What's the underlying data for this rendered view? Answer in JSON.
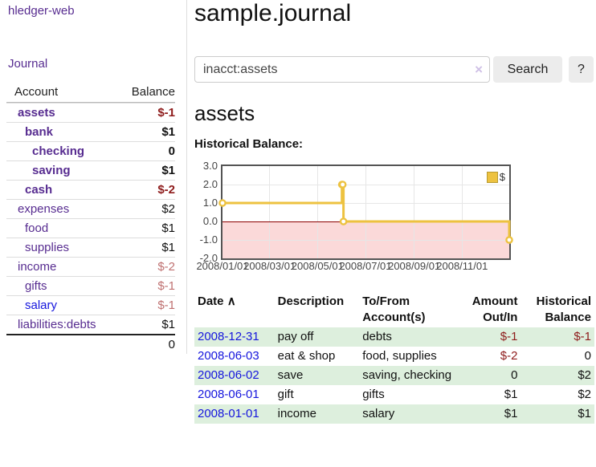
{
  "app": {
    "brand": "hledger-web"
  },
  "nav": {
    "journal": "Journal"
  },
  "sidebar": {
    "account_header": "Account",
    "balance_header": "Balance",
    "rows": [
      {
        "name": "assets",
        "balance": "$-1"
      },
      {
        "name": "bank",
        "balance": "$1"
      },
      {
        "name": "checking",
        "balance": "0"
      },
      {
        "name": "saving",
        "balance": "$1"
      },
      {
        "name": "cash",
        "balance": "$-2"
      },
      {
        "name": "expenses",
        "balance": "$2"
      },
      {
        "name": "food",
        "balance": "$1"
      },
      {
        "name": "supplies",
        "balance": "$1"
      },
      {
        "name": "income",
        "balance": "$-2"
      },
      {
        "name": "gifts",
        "balance": "$-1"
      },
      {
        "name": "salary",
        "balance": "$-1"
      },
      {
        "name": "liabilities:debts",
        "balance": "$1"
      }
    ],
    "total": "0"
  },
  "main": {
    "title": "sample.journal",
    "search": {
      "value": "inacct:assets",
      "clear_icon": "×",
      "button_label": "Search",
      "help_label": "?"
    },
    "account_heading": "assets",
    "chart_label": "Historical Balance:"
  },
  "chart_data": {
    "type": "line",
    "style": "step-after",
    "title": "Historical Balance",
    "x_range": [
      "2008/01/01",
      "2008/12/31"
    ],
    "ylim": [
      -2,
      3
    ],
    "yticks": [
      3.0,
      2.0,
      1.0,
      0.0,
      -1.0,
      -2.0
    ],
    "xticks": [
      "2008/01/01",
      "2008/03/01",
      "2008/05/01",
      "2008/07/01",
      "2008/09/01",
      "2008/11/01"
    ],
    "series": [
      {
        "name": "$",
        "color": "#edc240",
        "points": [
          [
            "2008/01/01",
            1
          ],
          [
            "2008/06/01",
            2
          ],
          [
            "2008/06/02",
            2
          ],
          [
            "2008/06/03",
            0
          ],
          [
            "2008/12/31",
            -1
          ]
        ]
      }
    ],
    "grid": true,
    "legend_position": "top-right",
    "negative_fill": "#fbd9d9",
    "zero_line_color": "#8b0000",
    "border_color": "#545454"
  },
  "register": {
    "headers": {
      "date": "Date",
      "sort_arrow": "∧",
      "description": "Description",
      "account": "To/From Account(s)",
      "amount": "Amount Out/In",
      "balance": "Historical Balance"
    },
    "rows": [
      {
        "date": "2008-12-31",
        "description": "pay off",
        "account": "debts",
        "amount": "$-1",
        "balance": "$-1"
      },
      {
        "date": "2008-06-03",
        "description": "eat & shop",
        "account": "food, supplies",
        "amount": "$-2",
        "balance": "0"
      },
      {
        "date": "2008-06-02",
        "description": "save",
        "account": "saving, checking",
        "amount": "0",
        "balance": "$2"
      },
      {
        "date": "2008-06-01",
        "description": "gift",
        "account": "gifts",
        "amount": "$1",
        "balance": "$2"
      },
      {
        "date": "2008-01-01",
        "description": "income",
        "account": "salary",
        "amount": "$1",
        "balance": "$1"
      }
    ]
  }
}
